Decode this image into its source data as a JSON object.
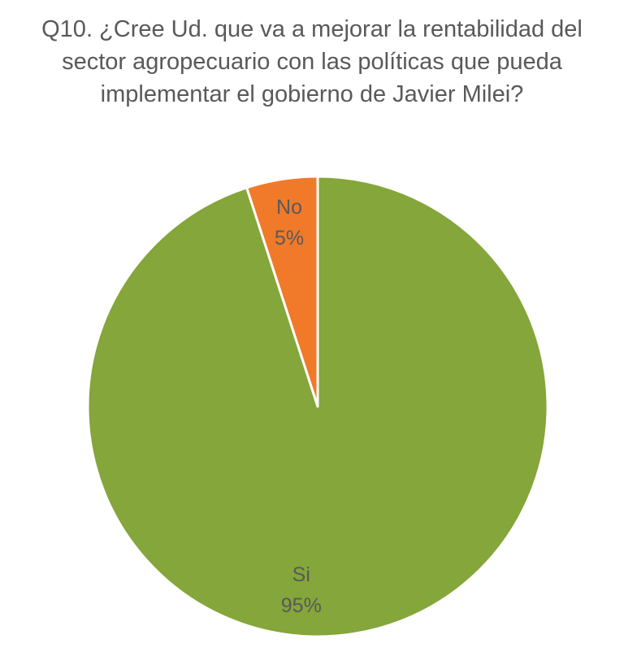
{
  "chart_data": {
    "type": "pie",
    "title": "Q10. ¿Cree Ud. que va a mejorar la rentabilidad del sector agropecuario con las políticas que pueda implementar el gobierno de Javier Milei?",
    "title_lines": [
      "Q10. ¿Cree Ud. que va a mejorar la rentabilidad del",
      "sector agropecuario con las políticas que pueda",
      "implementar el gobierno de Javier Milei?"
    ],
    "categories": [
      "Si",
      "No"
    ],
    "values": [
      95,
      5
    ],
    "value_labels": [
      "95%",
      "5%"
    ],
    "colors": [
      "#84A63A",
      "#F07A2A"
    ],
    "legend": "none",
    "start_angle_deg": 0,
    "direction": "clockwise-from-top, last slice first"
  }
}
